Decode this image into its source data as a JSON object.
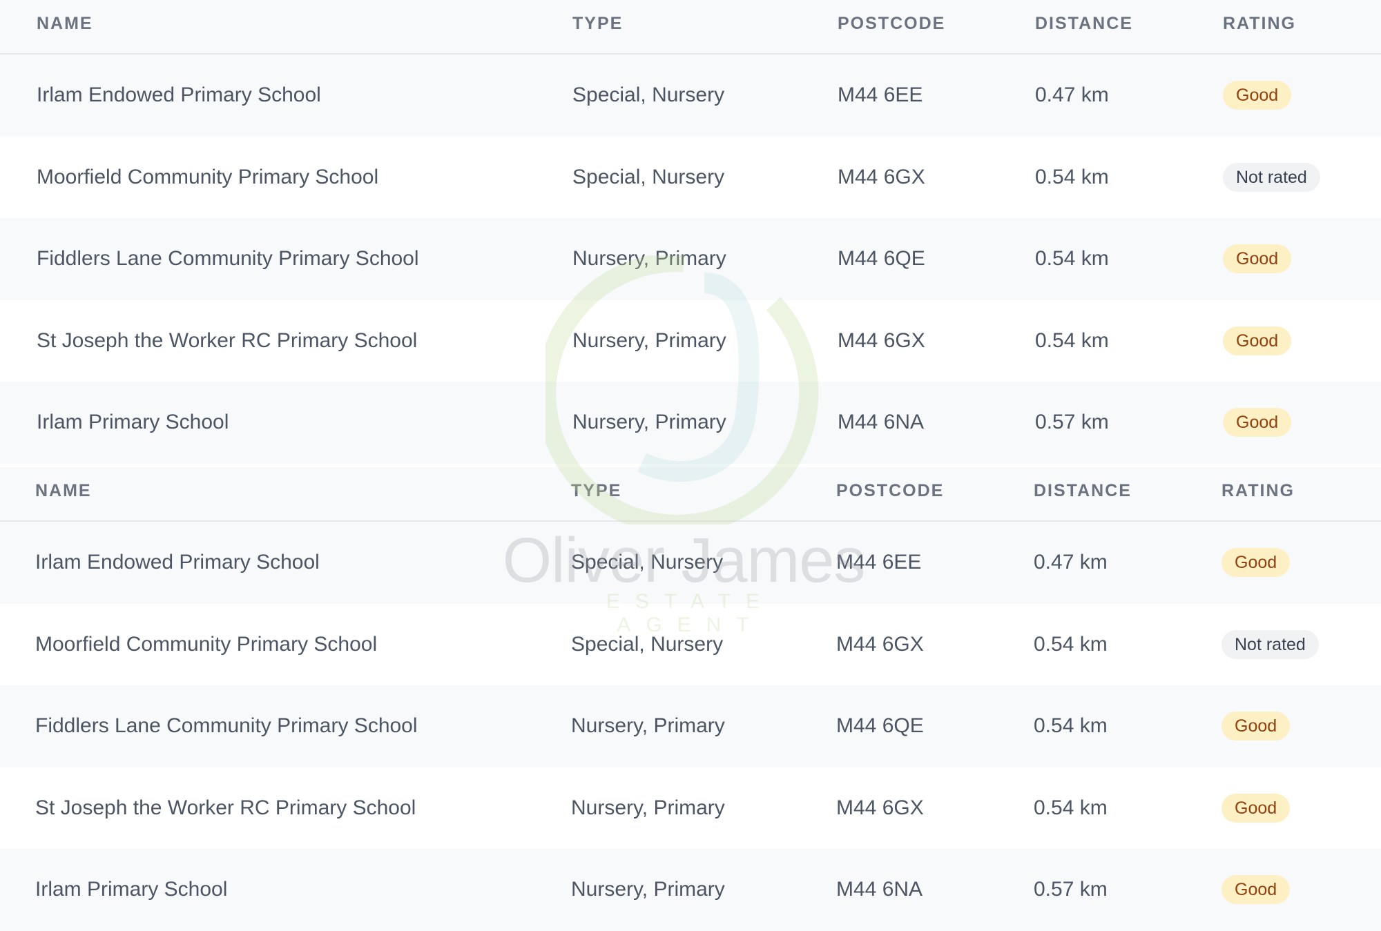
{
  "columns": [
    "NAME",
    "TYPE",
    "POSTCODE",
    "DISTANCE",
    "RATING"
  ],
  "tables": [
    {
      "rows": [
        {
          "name": "Irlam Endowed Primary School",
          "type": "Special, Nursery",
          "postcode": "M44 6EE",
          "distance": "0.47 km",
          "rating": "Good"
        },
        {
          "name": "Moorfield Community Primary School",
          "type": "Special, Nursery",
          "postcode": "M44 6GX",
          "distance": "0.54 km",
          "rating": "Not rated"
        },
        {
          "name": "Fiddlers Lane Community Primary School",
          "type": "Nursery, Primary",
          "postcode": "M44 6QE",
          "distance": "0.54 km",
          "rating": "Good"
        },
        {
          "name": "St Joseph the Worker RC Primary School",
          "type": "Nursery, Primary",
          "postcode": "M44 6GX",
          "distance": "0.54 km",
          "rating": "Good"
        },
        {
          "name": "Irlam Primary School",
          "type": "Nursery, Primary",
          "postcode": "M44 6NA",
          "distance": "0.57 km",
          "rating": "Good"
        }
      ]
    },
    {
      "rows": [
        {
          "name": "Irlam Endowed Primary School",
          "type": "Special, Nursery",
          "postcode": "M44 6EE",
          "distance": "0.47 km",
          "rating": "Good"
        },
        {
          "name": "Moorfield Community Primary School",
          "type": "Special, Nursery",
          "postcode": "M44 6GX",
          "distance": "0.54 km",
          "rating": "Not rated"
        },
        {
          "name": "Fiddlers Lane Community Primary School",
          "type": "Nursery, Primary",
          "postcode": "M44 6QE",
          "distance": "0.54 km",
          "rating": "Good"
        },
        {
          "name": "St Joseph the Worker RC Primary School",
          "type": "Nursery, Primary",
          "postcode": "M44 6GX",
          "distance": "0.54 km",
          "rating": "Good"
        },
        {
          "name": "Irlam Primary School",
          "type": "Nursery, Primary",
          "postcode": "M44 6NA",
          "distance": "0.57 km",
          "rating": "Good"
        }
      ]
    }
  ],
  "watermark": {
    "brand": "Oliver James",
    "tagline": "ESTATE AGENT"
  },
  "colors": {
    "good_bg": "#fdf0c4",
    "good_text": "#92400e",
    "not_rated_bg": "#f1f2f4",
    "header_bg": "#f8f9fb"
  }
}
